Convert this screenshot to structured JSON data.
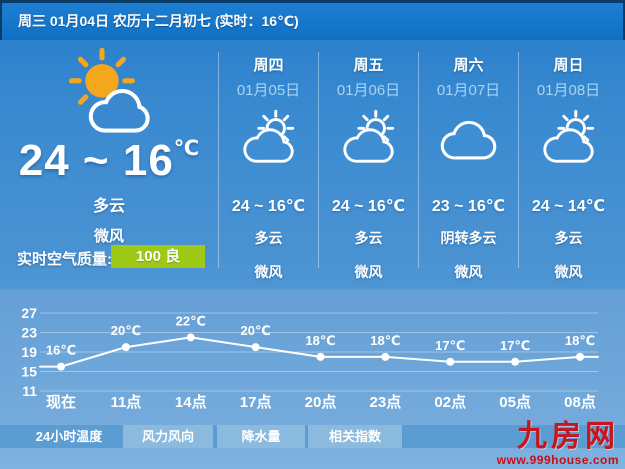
{
  "header": {
    "text": "周三 01月04日 农历十二月初七 (实时：16℃)"
  },
  "today": {
    "icon": "sun-cloud-icon",
    "temp_range": "24 ~ 16",
    "temp_unit": "℃",
    "condition": "多云",
    "wind": "微风",
    "aqi_label": "实时空气质量:",
    "aqi_value": "100 良",
    "aqi_color": "#9fc917"
  },
  "forecast": [
    {
      "day": "周四",
      "date": "01月05日",
      "icon": "sun-cloud-icon",
      "temp": "24 ~ 16℃",
      "condition": "多云",
      "wind": "微风"
    },
    {
      "day": "周五",
      "date": "01月06日",
      "icon": "sun-cloud-icon",
      "temp": "24 ~ 16℃",
      "condition": "多云",
      "wind": "微风"
    },
    {
      "day": "周六",
      "date": "01月07日",
      "icon": "cloud-icon",
      "temp": "23 ~ 16℃",
      "condition": "阴转多云",
      "wind": "微风"
    },
    {
      "day": "周日",
      "date": "01月08日",
      "icon": "sun-cloud-icon",
      "temp": "24 ~ 14℃",
      "condition": "多云",
      "wind": "微风"
    }
  ],
  "chart_data": {
    "type": "line",
    "title": "24小时温度",
    "categories": [
      "现在",
      "11点",
      "14点",
      "17点",
      "20点",
      "23点",
      "02点",
      "05点",
      "08点"
    ],
    "values": [
      16,
      20,
      22,
      20,
      18,
      18,
      17,
      17,
      18
    ],
    "point_labels": [
      "16℃",
      "20℃",
      "22℃",
      "20℃",
      "18℃",
      "18℃",
      "17℃",
      "17℃",
      "18℃"
    ],
    "yticks": [
      27,
      23,
      19,
      15,
      11
    ],
    "ylim": [
      11,
      27
    ],
    "line_color": "#ffffff",
    "grid": true,
    "legend": "none"
  },
  "tabs": [
    {
      "label": "24小时温度",
      "active": true
    },
    {
      "label": "风力风向",
      "active": false
    },
    {
      "label": "降水量",
      "active": false
    },
    {
      "label": "相关指数",
      "active": false
    }
  ],
  "branding": {
    "logo": "九房网",
    "url": "www.999house.com",
    "color": "#c8151b"
  }
}
